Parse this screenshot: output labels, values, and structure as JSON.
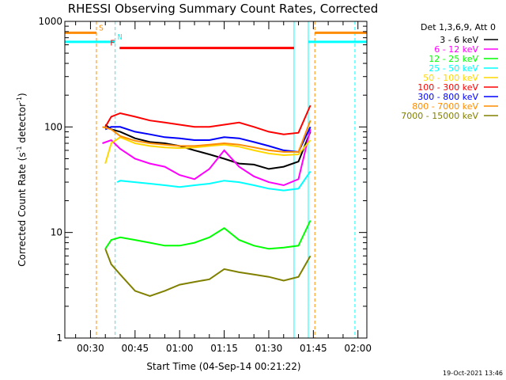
{
  "chart_data": {
    "type": "line",
    "title": "RHESSI Observing Summary Count Rates, Corrected",
    "xlabel": "Start Time (04-Sep-14 00:21:22)",
    "ylabel_main": "Corrected Count Rate (s",
    "ylabel_sup1": "-1",
    "ylabel_mid": " detector",
    "ylabel_sup2": "-1",
    "ylabel_end": ")",
    "y_scale": "log",
    "ylim": [
      1,
      1000
    ],
    "xlim_minutes": [
      21.37,
      123
    ],
    "x_ticks": [
      {
        "label": "00:30",
        "minute": 30
      },
      {
        "label": "00:45",
        "minute": 45
      },
      {
        "label": "01:00",
        "minute": 60
      },
      {
        "label": "01:15",
        "minute": 75
      },
      {
        "label": "01:30",
        "minute": 90
      },
      {
        "label": "01:45",
        "minute": 105
      },
      {
        "label": "02:00",
        "minute": 120
      }
    ],
    "y_ticks": [
      {
        "label": "1",
        "value": 1
      },
      {
        "label": "10",
        "value": 10
      },
      {
        "label": "100",
        "value": 100
      },
      {
        "label": "1000",
        "value": 1000
      }
    ],
    "legend_title": "Det 1,3,6,9, Att 0",
    "legend_placement": "right",
    "footer_date": "19-Oct-2021 13:46",
    "series": [
      {
        "name": "3 - 6 keV",
        "color": "#000000",
        "x": [
          35,
          37,
          40,
          45,
          50,
          55,
          60,
          65,
          70,
          75,
          80,
          85,
          90,
          95,
          100,
          104
        ],
        "y": [
          105,
          95,
          90,
          78,
          72,
          70,
          66,
          60,
          55,
          50,
          45,
          44,
          40,
          42,
          47,
          90
        ]
      },
      {
        "name": "6 - 12 keV",
        "color": "#ff00ff",
        "x": [
          34,
          37,
          40,
          45,
          50,
          55,
          60,
          65,
          70,
          75,
          80,
          85,
          90,
          95,
          100,
          104
        ],
        "y": [
          70,
          75,
          62,
          50,
          45,
          42,
          35,
          32,
          40,
          60,
          42,
          34,
          30,
          28,
          32,
          95
        ]
      },
      {
        "name": "12 - 25 keV",
        "color": "#00ff00",
        "x": [
          35,
          37,
          40,
          45,
          50,
          55,
          60,
          65,
          70,
          75,
          80,
          85,
          90,
          95,
          100,
          104
        ],
        "y": [
          7,
          8.5,
          9,
          8.5,
          8,
          7.5,
          7.5,
          8,
          9,
          11,
          8.5,
          7.5,
          7,
          7.2,
          7.5,
          13
        ]
      },
      {
        "name": "25 - 50 keV",
        "color": "#00ffff",
        "x": [
          39,
          40,
          45,
          50,
          55,
          60,
          65,
          70,
          75,
          80,
          85,
          90,
          95,
          100,
          104
        ],
        "y": [
          30,
          31,
          30,
          29,
          28,
          27,
          28,
          29,
          31,
          30,
          28,
          26,
          25,
          26,
          38
        ]
      },
      {
        "name": "50 - 100 keV",
        "color": "#ffd700",
        "x": [
          35,
          37,
          40,
          45,
          50,
          55,
          60,
          65,
          70,
          75,
          80,
          85,
          90,
          95,
          100,
          104
        ],
        "y": [
          45,
          70,
          80,
          70,
          66,
          64,
          63,
          64,
          66,
          68,
          65,
          60,
          56,
          54,
          55,
          75
        ]
      },
      {
        "name": "100 - 300 keV",
        "color": "#ff0000",
        "x": [
          35,
          37,
          40,
          45,
          50,
          55,
          60,
          65,
          70,
          75,
          80,
          85,
          90,
          95,
          100,
          104
        ],
        "y": [
          100,
          125,
          135,
          125,
          115,
          110,
          105,
          100,
          100,
          105,
          110,
          100,
          90,
          85,
          88,
          160
        ]
      },
      {
        "name": "300 - 800 keV",
        "color": "#0000ff",
        "x": [
          35,
          37,
          40,
          45,
          50,
          55,
          60,
          65,
          70,
          75,
          80,
          85,
          90,
          95,
          100,
          104
        ],
        "y": [
          95,
          100,
          100,
          90,
          85,
          80,
          78,
          75,
          75,
          80,
          78,
          72,
          66,
          60,
          58,
          100
        ]
      },
      {
        "name": "800 - 7000 keV",
        "color": "#ff8c00",
        "x": [
          34,
          37,
          40,
          45,
          50,
          55,
          60,
          65,
          70,
          75,
          80,
          85,
          90,
          95,
          100,
          104
        ],
        "y": [
          100,
          95,
          82,
          74,
          70,
          68,
          66,
          66,
          68,
          70,
          68,
          64,
          60,
          58,
          58,
          115
        ]
      },
      {
        "name": "7000 - 15000 keV",
        "color": "#808000",
        "x": [
          35,
          37,
          40,
          45,
          50,
          55,
          60,
          65,
          70,
          75,
          80,
          85,
          90,
          95,
          100,
          104
        ],
        "y": [
          7,
          5,
          4,
          2.8,
          2.5,
          2.8,
          3.2,
          3.4,
          3.6,
          4.5,
          4.2,
          4,
          3.8,
          3.5,
          3.8,
          6
        ]
      }
    ],
    "annotations": [
      {
        "text": "S",
        "color": "#ff8c00",
        "x0": 21.37,
        "x1": 32,
        "y": 780
      },
      {
        "text": "N",
        "color": "#00ffff",
        "x0": 21.37,
        "x1": 38.3,
        "y": 640
      },
      {
        "text": "F",
        "color": "#ff0000",
        "x0": 39.8,
        "x1": 98.5,
        "y": 560
      },
      {
        "text": "",
        "color": "#ff8c00",
        "x0": 105.5,
        "x1": 123,
        "y": 780
      },
      {
        "text": "",
        "color": "#00ffff",
        "x0": 103.3,
        "x1": 123,
        "y": 640
      }
    ],
    "vertical_lines": [
      {
        "minute": 32,
        "color": "#ff8c00",
        "dash": true
      },
      {
        "minute": 38.3,
        "color": "#00ffff",
        "dash": true
      },
      {
        "minute": 98.5,
        "color": "#00ffff",
        "dash": false
      },
      {
        "minute": 103.3,
        "color": "#00ffff",
        "dash": false
      },
      {
        "minute": 105.5,
        "color": "#ff8c00",
        "dash": true
      },
      {
        "minute": 119,
        "color": "#00ffff",
        "dash": true
      }
    ]
  }
}
